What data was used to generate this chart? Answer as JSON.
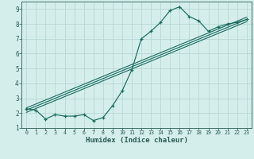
{
  "xlabel": "Humidex (Indice chaleur)",
  "bg_color": "#d4eeec",
  "grid_color": "#b8d8d5",
  "line_color": "#1a6b5e",
  "axis_color": "#2a5a52",
  "xlim": [
    -0.5,
    23.5
  ],
  "ylim": [
    1,
    9.5
  ],
  "xticks": [
    0,
    1,
    2,
    3,
    4,
    5,
    6,
    7,
    8,
    9,
    10,
    11,
    12,
    13,
    14,
    15,
    16,
    17,
    18,
    19,
    20,
    21,
    22,
    23
  ],
  "yticks": [
    1,
    2,
    3,
    4,
    5,
    6,
    7,
    8,
    9
  ],
  "data_x": [
    0,
    1,
    2,
    3,
    4,
    5,
    6,
    7,
    8,
    9,
    10,
    11,
    12,
    13,
    14,
    15,
    16,
    17,
    18,
    19,
    20,
    21,
    22,
    23
  ],
  "data_y": [
    2.3,
    2.2,
    1.6,
    1.9,
    1.8,
    1.8,
    1.9,
    1.5,
    1.7,
    2.5,
    3.5,
    4.9,
    7.0,
    7.5,
    8.1,
    8.9,
    9.15,
    8.5,
    8.2,
    7.5,
    7.8,
    8.0,
    8.1,
    8.3
  ],
  "reg_lines": [
    {
      "x0": 0,
      "y0": 2.05,
      "x1": 23,
      "y1": 8.15
    },
    {
      "x0": 0,
      "y0": 2.2,
      "x1": 23,
      "y1": 8.3
    },
    {
      "x0": 0,
      "y0": 2.35,
      "x1": 23,
      "y1": 8.45
    }
  ]
}
